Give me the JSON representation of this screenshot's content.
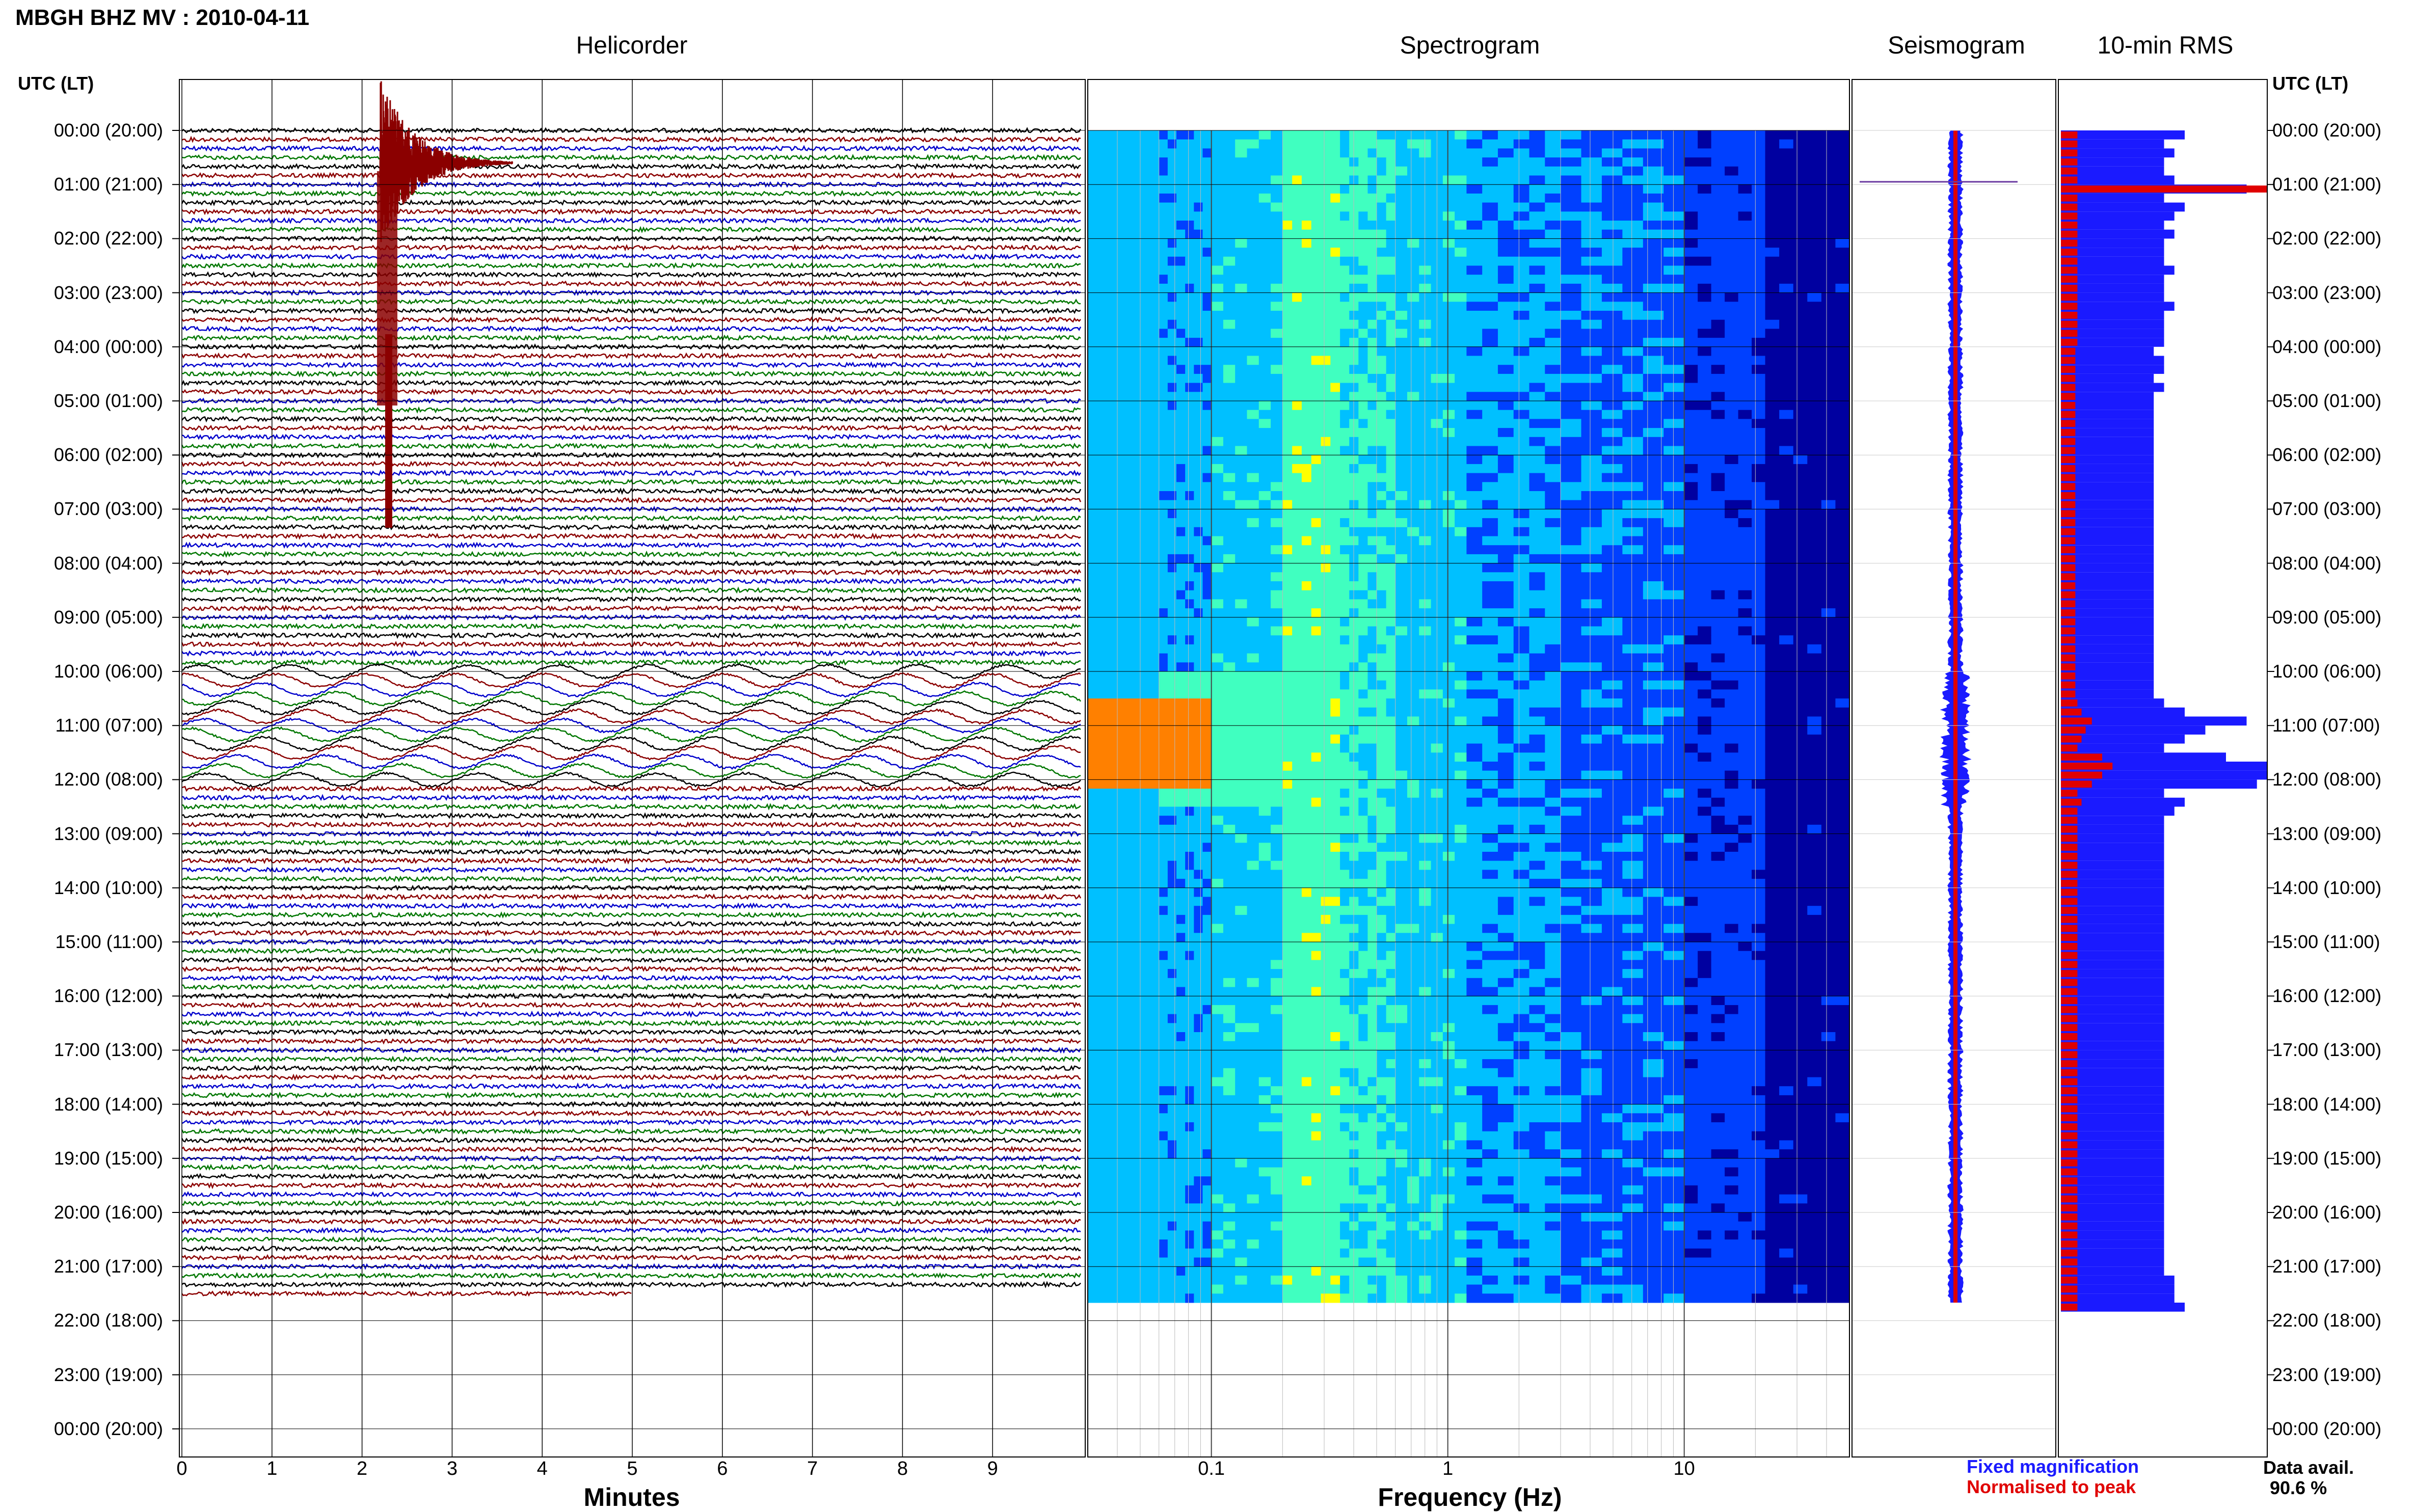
{
  "page": {
    "title": "MBGH BHZ MV : 2010-04-11"
  },
  "panels": {
    "helicorder": "Helicorder",
    "spectrogram": "Spectrogram",
    "seismogram": "Seismogram",
    "rms": "10-min RMS"
  },
  "axis": {
    "time_header": "UTC (LT)",
    "hour_labels": [
      "00:00 (20:00)",
      "01:00 (21:00)",
      "02:00 (22:00)",
      "03:00 (23:00)",
      "04:00 (00:00)",
      "05:00 (01:00)",
      "06:00 (02:00)",
      "07:00 (03:00)",
      "08:00 (04:00)",
      "09:00 (05:00)",
      "10:00 (06:00)",
      "11:00 (07:00)",
      "12:00 (08:00)",
      "13:00 (09:00)",
      "14:00 (10:00)",
      "15:00 (11:00)",
      "16:00 (12:00)",
      "17:00 (13:00)",
      "18:00 (14:00)",
      "19:00 (15:00)",
      "20:00 (16:00)",
      "21:00 (17:00)",
      "22:00 (18:00)",
      "23:00 (19:00)",
      "00:00 (20:00)"
    ],
    "minutes_label": "Minutes",
    "minute_ticks": [
      "0",
      "1",
      "2",
      "3",
      "4",
      "5",
      "6",
      "7",
      "8",
      "9"
    ],
    "frequency_label": "Frequency (Hz)",
    "frequency_ticks": [
      "0.1",
      "1",
      "10"
    ]
  },
  "legend": {
    "fixed": "Fixed magnification",
    "normalised": "Normalised to peak",
    "fixed_color": "#1a1aff",
    "normalised_color": "#e00000"
  },
  "data_avail": {
    "label": "Data avail.",
    "value": "90.6 %"
  },
  "chart_data": [
    {
      "type": "line",
      "panel": "Helicorder",
      "xlabel": "Minutes",
      "xlim": [
        0,
        10
      ],
      "trace_colors": [
        "#000000",
        "#8b0000",
        "#0000cc",
        "#007700"
      ],
      "data_end_utc": "21:50",
      "events": [
        {
          "utc_start": "00:10",
          "minute": 2.2,
          "description_visible": false
        },
        {
          "utc_start": "11:00",
          "minute": 0
        }
      ]
    },
    {
      "type": "heatmap",
      "panel": "Spectrogram",
      "xlabel": "Frequency (Hz)",
      "x_scale": "log",
      "xlim": [
        0.03,
        50
      ],
      "x_ticks": [
        0.1,
        1,
        10
      ],
      "colormap": [
        "#0000a0",
        "#0040ff",
        "#00c0ff",
        "#40ffc0",
        "#ffff00",
        "#ff8000",
        "#ff0000"
      ],
      "data_end_utc": "21:50"
    },
    {
      "type": "line",
      "panel": "Seismogram",
      "series": [
        {
          "name": "Fixed magnification",
          "color": "#1a1aff"
        },
        {
          "name": "Normalised to peak",
          "color": "#e00000"
        }
      ]
    },
    {
      "type": "bar",
      "panel": "10-min RMS",
      "orientation": "horizontal",
      "interval_minutes": 10,
      "series": [
        {
          "name": "Fixed magnification",
          "color": "#1a1aff",
          "values": [
            0.6,
            0.5,
            0.55,
            0.5,
            0.5,
            0.55,
            0.9,
            0.5,
            0.6,
            0.55,
            0.5,
            0.55,
            0.5,
            0.5,
            0.5,
            0.55,
            0.5,
            0.5,
            0.5,
            0.55,
            0.5,
            0.5,
            0.5,
            0.5,
            0.45,
            0.5,
            0.5,
            0.45,
            0.5,
            0.45,
            0.45,
            0.45,
            0.45,
            0.45,
            0.45,
            0.45,
            0.45,
            0.45,
            0.45,
            0.45,
            0.45,
            0.45,
            0.45,
            0.45,
            0.45,
            0.45,
            0.45,
            0.45,
            0.45,
            0.45,
            0.45,
            0.45,
            0.45,
            0.45,
            0.45,
            0.45,
            0.45,
            0.45,
            0.45,
            0.45,
            0.45,
            0.45,
            0.45,
            0.5,
            0.6,
            0.9,
            0.7,
            0.6,
            0.5,
            0.8,
            1.0,
            1.0,
            0.95,
            0.5,
            0.6,
            0.55,
            0.5,
            0.5,
            0.5,
            0.5,
            0.5,
            0.5,
            0.5,
            0.5,
            0.5,
            0.5,
            0.5,
            0.5,
            0.5,
            0.5,
            0.5,
            0.5,
            0.5,
            0.5,
            0.5,
            0.5,
            0.5,
            0.5,
            0.5,
            0.5,
            0.5,
            0.5,
            0.5,
            0.5,
            0.5,
            0.5,
            0.5,
            0.5,
            0.5,
            0.5,
            0.5,
            0.5,
            0.5,
            0.5,
            0.5,
            0.5,
            0.5,
            0.5,
            0.5,
            0.5,
            0.5,
            0.5,
            0.5,
            0.5,
            0.5,
            0.5,
            0.5,
            0.55,
            0.55,
            0.55,
            0.6
          ]
        },
        {
          "name": "Normalised to peak",
          "color": "#e00000",
          "values": [
            0.08,
            0.08,
            0.08,
            0.08,
            0.08,
            0.08,
            1.0,
            0.08,
            0.08,
            0.08,
            0.08,
            0.08,
            0.08,
            0.08,
            0.08,
            0.08,
            0.08,
            0.08,
            0.08,
            0.08,
            0.08,
            0.08,
            0.08,
            0.08,
            0.07,
            0.07,
            0.07,
            0.07,
            0.07,
            0.07,
            0.07,
            0.07,
            0.07,
            0.07,
            0.07,
            0.07,
            0.07,
            0.07,
            0.07,
            0.07,
            0.07,
            0.07,
            0.07,
            0.07,
            0.07,
            0.07,
            0.07,
            0.07,
            0.07,
            0.07,
            0.07,
            0.07,
            0.07,
            0.07,
            0.07,
            0.07,
            0.07,
            0.07,
            0.07,
            0.07,
            0.07,
            0.07,
            0.07,
            0.08,
            0.1,
            0.15,
            0.12,
            0.1,
            0.08,
            0.2,
            0.25,
            0.2,
            0.15,
            0.08,
            0.1,
            0.08,
            0.08,
            0.08,
            0.08,
            0.08,
            0.08,
            0.08,
            0.08,
            0.08,
            0.08,
            0.08,
            0.08,
            0.08,
            0.08,
            0.08,
            0.08,
            0.08,
            0.08,
            0.08,
            0.08,
            0.08,
            0.08,
            0.08,
            0.08,
            0.08,
            0.08,
            0.08,
            0.08,
            0.08,
            0.08,
            0.08,
            0.08,
            0.08,
            0.08,
            0.08,
            0.08,
            0.08,
            0.08,
            0.08,
            0.08,
            0.08,
            0.08,
            0.08,
            0.08,
            0.08,
            0.08,
            0.08,
            0.08,
            0.08,
            0.08,
            0.08,
            0.08,
            0.08,
            0.08,
            0.08,
            0.08
          ]
        }
      ]
    }
  ]
}
